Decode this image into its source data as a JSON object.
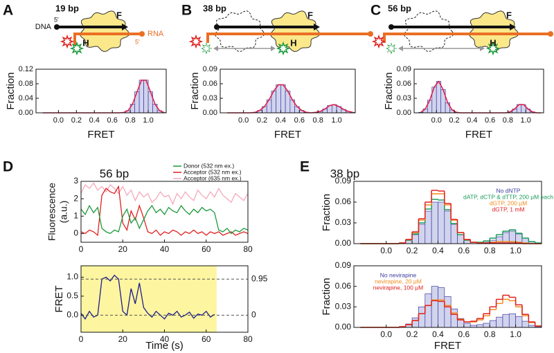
{
  "chart_data": [
    {
      "type": "histogram",
      "panel": "A",
      "label": "19 bp",
      "schematic": {
        "dna": "DNA",
        "dna_end": "5'",
        "rna": "RNA",
        "rna_end": "5'",
        "domain_f": "F",
        "domain_h": "H"
      },
      "bins": [
        -0.2,
        -0.15,
        -0.1,
        -0.05,
        0,
        0.05,
        0.1,
        0.15,
        0.2,
        0.25,
        0.3,
        0.35,
        0.4,
        0.45,
        0.5,
        0.55,
        0.6,
        0.65,
        0.7,
        0.75,
        0.8,
        0.85,
        0.9,
        0.95,
        1,
        1.05,
        1.1,
        1.15,
        1.2
      ],
      "values": [
        0,
        0,
        0,
        0,
        0,
        0,
        0,
        0,
        0,
        0,
        0,
        0,
        0,
        0,
        0,
        0,
        0,
        0,
        0.001,
        0.006,
        0.024,
        0.058,
        0.09,
        0.09,
        0.058,
        0.024,
        0.006,
        0.001
      ],
      "color": "#3a3aa0",
      "fit_color": "#e0204a",
      "xlim": [
        -0.25,
        1.2
      ],
      "ylim": [
        0,
        0.12
      ],
      "xticks": [
        {
          "value": 0,
          "label": "0.0"
        },
        {
          "value": 0.2,
          "label": "0.2"
        },
        {
          "value": 0.4,
          "label": "0.4"
        },
        {
          "value": 0.6,
          "label": "0.6"
        },
        {
          "value": 0.8,
          "label": "0.8"
        },
        {
          "value": 1,
          "label": "1.0"
        }
      ],
      "yticks": [
        {
          "value": 0,
          "label": "0.00"
        },
        {
          "value": 0.04,
          "label": "0.04"
        },
        {
          "value": 0.08,
          "label": "0.08"
        },
        {
          "value": 0.12,
          "label": "0.12"
        }
      ],
      "xlabel": "FRET",
      "ylabel": "Fraction"
    },
    {
      "type": "histogram",
      "panel": "B",
      "label": "38 bp",
      "schematic": {
        "domain_f": "F",
        "domain_h": "H"
      },
      "bins": [
        -0.2,
        -0.15,
        -0.1,
        -0.05,
        0,
        0.05,
        0.1,
        0.15,
        0.2,
        0.25,
        0.3,
        0.35,
        0.4,
        0.45,
        0.5,
        0.55,
        0.6,
        0.65,
        0.7,
        0.75,
        0.8,
        0.85,
        0.9,
        0.95,
        1,
        1.05,
        1.1,
        1.15,
        1.2
      ],
      "values": [
        0,
        0,
        0,
        0,
        0,
        0,
        0.001,
        0.005,
        0.013,
        0.027,
        0.045,
        0.058,
        0.058,
        0.045,
        0.027,
        0.013,
        0.005,
        0.001,
        0,
        0.001,
        0.003,
        0.008,
        0.015,
        0.017,
        0.013,
        0.007,
        0.003,
        0.001
      ],
      "color": "#3a3aa0",
      "fit_color": "#e0204a",
      "xlim": [
        -0.25,
        1.2
      ],
      "ylim": [
        0,
        0.09
      ],
      "xticks": [
        {
          "value": 0,
          "label": "0.0"
        },
        {
          "value": 0.2,
          "label": "0.2"
        },
        {
          "value": 0.4,
          "label": "0.4"
        },
        {
          "value": 0.6,
          "label": "0.6"
        },
        {
          "value": 0.8,
          "label": "0.8"
        },
        {
          "value": 1,
          "label": "1.0"
        }
      ],
      "yticks": [
        {
          "value": 0,
          "label": "0.00"
        },
        {
          "value": 0.03,
          "label": "0.03"
        },
        {
          "value": 0.06,
          "label": "0.06"
        },
        {
          "value": 0.09,
          "label": "0.09"
        }
      ],
      "xlabel": "FRET",
      "ylabel": "Fraction"
    },
    {
      "type": "histogram",
      "panel": "C",
      "label": "56 bp",
      "schematic": {
        "domain_f": "F",
        "domain_h": "H"
      },
      "bins": [
        -0.2,
        -0.15,
        -0.1,
        -0.05,
        0,
        0.05,
        0.1,
        0.15,
        0.2,
        0.25,
        0.3,
        0.35,
        0.4,
        0.45,
        0.5,
        0.55,
        0.6,
        0.65,
        0.7,
        0.75,
        0.8,
        0.85,
        0.9,
        0.95,
        1,
        1.05,
        1.1,
        1.15,
        1.2
      ],
      "values": [
        0.001,
        0.008,
        0.026,
        0.053,
        0.065,
        0.048,
        0.021,
        0.006,
        0.001,
        0,
        0,
        0,
        0,
        0,
        0,
        0,
        0,
        0,
        0,
        0,
        0.002,
        0.008,
        0.017,
        0.017,
        0.008,
        0.002,
        0,
        0
      ],
      "color": "#3a3aa0",
      "fit_color": "#e0204a",
      "xlim": [
        -0.25,
        1.2
      ],
      "ylim": [
        0,
        0.09
      ],
      "xticks": [
        {
          "value": 0,
          "label": "0.0"
        },
        {
          "value": 0.2,
          "label": "0.2"
        },
        {
          "value": 0.4,
          "label": "0.4"
        },
        {
          "value": 0.6,
          "label": "0.6"
        },
        {
          "value": 0.8,
          "label": "0.8"
        },
        {
          "value": 1,
          "label": "1.0"
        }
      ],
      "yticks": [
        {
          "value": 0,
          "label": "0.00"
        },
        {
          "value": 0.03,
          "label": "0.03"
        },
        {
          "value": 0.06,
          "label": "0.06"
        },
        {
          "value": 0.09,
          "label": "0.09"
        }
      ],
      "xlabel": "FRET",
      "ylabel": "Fraction"
    },
    {
      "type": "line",
      "panel": "D",
      "title": "56 bp",
      "x": [
        0,
        2,
        4,
        6,
        8,
        10,
        12,
        14,
        16,
        18,
        20,
        22,
        24,
        26,
        28,
        30,
        32,
        34,
        36,
        38,
        40,
        42,
        44,
        46,
        48,
        50,
        52,
        54,
        56,
        58,
        60,
        62,
        64,
        66,
        68,
        70,
        72,
        74,
        76,
        78,
        80
      ],
      "series": [
        {
          "name": "Donor (532 nm ex.)",
          "color": "#1a9a3a",
          "values": [
            1.4,
            1.1,
            1.6,
            1.2,
            1.5,
            0.3,
            0.1,
            0.0,
            0.2,
            0.1,
            1.0,
            1.4,
            0.6,
            0.9,
            0.3,
            0.8,
            1.3,
            1.6,
            1.2,
            1.4,
            1.1,
            1.5,
            1.3,
            1.2,
            1.6,
            1.3,
            1.1,
            1.4,
            1.2,
            1.5,
            1.3,
            1.4,
            1.2,
            0.2,
            0.1,
            0.3,
            0.0,
            0.2,
            0.1,
            0.3,
            0.2
          ]
        },
        {
          "name": "Acceptor (532 nm ex.)",
          "color": "#e02020",
          "values": [
            0.1,
            0.0,
            0.2,
            0.1,
            -0.1,
            2.2,
            2.6,
            2.4,
            2.3,
            2.7,
            0.6,
            0.2,
            1.3,
            0.8,
            1.6,
            0.9,
            0.1,
            0.0,
            0.2,
            -0.1,
            0.1,
            0.0,
            0.2,
            0.1,
            -0.1,
            0.1,
            0.0,
            0.2,
            0.0,
            0.1,
            -0.1,
            0.1,
            0.0,
            0.1,
            -0.1,
            0.0,
            0.1,
            -0.1,
            0.0,
            0.1,
            0.0
          ]
        },
        {
          "name": "Acceptor (635 nm ex.)",
          "color": "#f4a8bc",
          "values": [
            2.3,
            2.8,
            2.6,
            2.9,
            2.5,
            2.7,
            2.4,
            2.8,
            2.6,
            2.3,
            2.7,
            2.2,
            2.5,
            1.9,
            2.4,
            2.1,
            2.3,
            1.8,
            2.0,
            2.4,
            2.1,
            2.2,
            1.7,
            2.3,
            2.0,
            2.4,
            2.1,
            1.9,
            2.5,
            2.2,
            2.0,
            2.4,
            2.1,
            2.6,
            2.2,
            2.0,
            1.8,
            2.3,
            2.1,
            1.9,
            2.3
          ]
        }
      ],
      "legend": "above right",
      "xlim": [
        0,
        80
      ],
      "ylim": [
        -0.5,
        3
      ],
      "xticks": [
        0,
        20,
        40,
        60,
        80
      ],
      "yticks": [
        0,
        1,
        2,
        3
      ],
      "ylabel": [
        "Fluorescence",
        "(a.u.)"
      ]
    },
    {
      "type": "line",
      "x": [
        0,
        2,
        4,
        6,
        8,
        10,
        12,
        14,
        16,
        18,
        20,
        22,
        24,
        26,
        28,
        30,
        32,
        34,
        36,
        38,
        40,
        42,
        44,
        46,
        48,
        50,
        52,
        54,
        56,
        58,
        60,
        62,
        64
      ],
      "values": [
        0.05,
        -0.1,
        0.1,
        -0.05,
        0.0,
        0.95,
        1.0,
        0.9,
        1.05,
        0.95,
        0.1,
        0.0,
        0.7,
        0.3,
        0.85,
        0.2,
        0.05,
        -0.05,
        0.1,
        0.0,
        -0.1,
        0.05,
        0.0,
        0.1,
        -0.05,
        0.0,
        0.08,
        -0.08,
        0.03,
        0.0,
        0.1,
        -0.05,
        0.02
      ],
      "color": "#1a1a8c",
      "highlight": [
        0,
        65
      ],
      "highlight_color": "#fdf5a0",
      "hlines": [
        0.95,
        0
      ],
      "xlim": [
        0,
        80
      ],
      "ylim": [
        -0.45,
        1.3
      ],
      "xticks": [
        0,
        20,
        40,
        60,
        80
      ],
      "yticks": [
        {
          "value": 0,
          "label": "0.0"
        },
        {
          "value": 0.5,
          "label": "0.5"
        },
        {
          "value": 1,
          "label": "1.0"
        }
      ],
      "xlabel": "Time (s)",
      "ylabel": "FRET"
    },
    {
      "type": "histogram",
      "panel": "E",
      "title": "38 bp",
      "bins": [
        -0.2,
        -0.15,
        -0.1,
        -0.05,
        0,
        0.05,
        0.1,
        0.15,
        0.2,
        0.25,
        0.3,
        0.35,
        0.4,
        0.45,
        0.5,
        0.55,
        0.6,
        0.65,
        0.7,
        0.75,
        0.8,
        0.85,
        0.9,
        0.95,
        1,
        1.05,
        1.1,
        1.15,
        1.2
      ],
      "series": [
        {
          "name": "No dNTP",
          "color": "#3a3aa0",
          "style": "bars",
          "values": [
            0,
            0,
            0,
            0,
            0,
            0,
            0.001,
            0.005,
            0.013,
            0.028,
            0.047,
            0.06,
            0.06,
            0.047,
            0.028,
            0.013,
            0.005,
            0.002,
            0.001,
            0.002,
            0.005,
            0.01,
            0.016,
            0.018,
            0.014,
            0.008,
            0.003,
            0.001
          ]
        },
        {
          "name": "dATP, dCTP & dTTP, 200 µM each",
          "color": "#1a9a5a",
          "style": "step",
          "values": [
            0,
            0,
            0,
            0,
            0,
            0,
            0.001,
            0.005,
            0.014,
            0.03,
            0.05,
            0.064,
            0.063,
            0.049,
            0.029,
            0.013,
            0.005,
            0.002,
            0.002,
            0.004,
            0.008,
            0.013,
            0.018,
            0.02,
            0.015,
            0.008,
            0.003,
            0.001
          ]
        },
        {
          "name": "dGTP, 200 µM",
          "color": "#f08c1e",
          "style": "step",
          "values": [
            0,
            0,
            0,
            0,
            0,
            0,
            0.001,
            0.006,
            0.016,
            0.034,
            0.056,
            0.072,
            0.072,
            0.056,
            0.034,
            0.016,
            0.006,
            0.002,
            0.001,
            0.001,
            0.002,
            0.003,
            0.003,
            0.003,
            0.002,
            0.001,
            0,
            0
          ]
        },
        {
          "name": "dGTP, 1 mM",
          "color": "#e02020",
          "style": "step",
          "values": [
            0,
            0,
            0,
            0,
            0,
            0,
            0.001,
            0.006,
            0.017,
            0.036,
            0.06,
            0.077,
            0.076,
            0.058,
            0.035,
            0.016,
            0.006,
            0.002,
            0.001,
            0.001,
            0.001,
            0.001,
            0.001,
            0.001,
            0.001,
            0,
            0,
            0
          ]
        }
      ],
      "legend": "upper right",
      "xlim": [
        -0.25,
        1.2
      ],
      "ylim": [
        0,
        0.09
      ],
      "xticks": [
        {
          "value": 0,
          "label": "0.0"
        },
        {
          "value": 0.2,
          "label": "0.2"
        },
        {
          "value": 0.4,
          "label": "0.4"
        },
        {
          "value": 0.6,
          "label": "0.6"
        },
        {
          "value": 0.8,
          "label": "0.8"
        },
        {
          "value": 1,
          "label": "1.0"
        }
      ],
      "yticks": [
        {
          "value": 0,
          "label": "0.00"
        },
        {
          "value": 0.03,
          "label": "0.03"
        },
        {
          "value": 0.06,
          "label": "0.06"
        },
        {
          "value": 0.09,
          "label": "0.09"
        }
      ],
      "ylabel": "Fraction"
    },
    {
      "type": "histogram",
      "bins": [
        -0.2,
        -0.15,
        -0.1,
        -0.05,
        0,
        0.05,
        0.1,
        0.15,
        0.2,
        0.25,
        0.3,
        0.35,
        0.4,
        0.45,
        0.5,
        0.55,
        0.6,
        0.65,
        0.7,
        0.75,
        0.8,
        0.85,
        0.9,
        0.95,
        1,
        1.05,
        1.1,
        1.15,
        1.2
      ],
      "series": [
        {
          "name": "No nevirapine",
          "color": "#3a3aa0",
          "style": "bars",
          "values": [
            0,
            0,
            0,
            0,
            0,
            0,
            0.001,
            0.005,
            0.014,
            0.03,
            0.049,
            0.06,
            0.058,
            0.045,
            0.027,
            0.013,
            0.006,
            0.003,
            0.004,
            0.006,
            0.01,
            0.015,
            0.019,
            0.02,
            0.016,
            0.009,
            0.003,
            0.001
          ]
        },
        {
          "name": "nevirapine, 20 µM",
          "color": "#f08c1e",
          "style": "step",
          "values": [
            0,
            0,
            0,
            0,
            0,
            0,
            0.001,
            0.004,
            0.01,
            0.02,
            0.032,
            0.04,
            0.04,
            0.032,
            0.021,
            0.012,
            0.008,
            0.008,
            0.011,
            0.017,
            0.026,
            0.035,
            0.041,
            0.039,
            0.03,
            0.017,
            0.007,
            0.002
          ]
        },
        {
          "name": "nevirapine, 100 µM",
          "color": "#e02020",
          "style": "step",
          "values": [
            0,
            0,
            0,
            0,
            0,
            0,
            0.001,
            0.004,
            0.01,
            0.02,
            0.032,
            0.039,
            0.038,
            0.03,
            0.019,
            0.011,
            0.008,
            0.009,
            0.013,
            0.02,
            0.03,
            0.041,
            0.047,
            0.044,
            0.033,
            0.019,
            0.008,
            0.002
          ]
        }
      ],
      "legend": "upper left",
      "xlim": [
        -0.25,
        1.2
      ],
      "ylim": [
        0,
        0.09
      ],
      "xticks": [
        {
          "value": 0,
          "label": "0.0"
        },
        {
          "value": 0.2,
          "label": "0.2"
        },
        {
          "value": 0.4,
          "label": "0.4"
        },
        {
          "value": 0.6,
          "label": "0.6"
        },
        {
          "value": 0.8,
          "label": "0.8"
        },
        {
          "value": 1,
          "label": "1.0"
        }
      ],
      "yticks": [
        {
          "value": 0,
          "label": "0.00"
        },
        {
          "value": 0.03,
          "label": "0.03"
        },
        {
          "value": 0.06,
          "label": "0.06"
        },
        {
          "value": 0.09,
          "label": "0.09"
        }
      ],
      "xlabel": "FRET",
      "ylabel": "Fraction"
    }
  ]
}
